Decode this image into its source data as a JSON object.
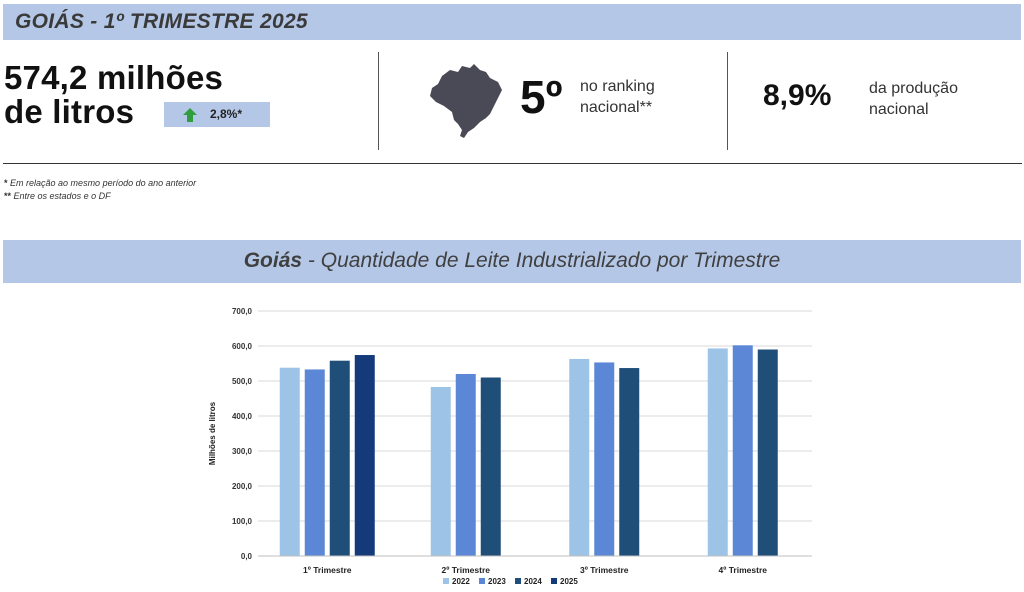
{
  "header": {
    "title": "GOIÁS - 1º TRIMESTRE 2025"
  },
  "kpis": {
    "volume_line1": "574,2 milhões",
    "volume_line2": "de litros",
    "growth_label": "2,8%*",
    "growth_direction_icon": "up-arrow-icon",
    "map_icon": "brazil-map-icon",
    "rank_value": "5º",
    "rank_text": "no ranking nacional**",
    "share_value": "8,9%",
    "share_text": "da produção nacional"
  },
  "notes": [
    {
      "marker": "*",
      "text": "Em relação ao mesmo período do ano anterior"
    },
    {
      "marker": "**",
      "text": "Entre os estados e o DF"
    }
  ],
  "chart_header": {
    "title_bold": "Goiás",
    "title_rest": "- Quantidade de Leite Industrializado por Trimestre"
  },
  "colors": {
    "band": "#b4c7e7",
    "accent_green": "#2e9e3e",
    "map": "#4a4a56"
  },
  "chart_data": {
    "type": "bar",
    "ylabel": "Milhões de litros",
    "xlabel": "",
    "ylim": [
      0,
      700
    ],
    "ytick_step": 100,
    "ytick_labels": [
      "0,0",
      "100,0",
      "200,0",
      "300,0",
      "400,0",
      "500,0",
      "600,0",
      "700,0"
    ],
    "grid": true,
    "legend_position": "bottom",
    "categories": [
      "1º Trimestre",
      "2º Trimestre",
      "3º Trimestre",
      "4º Trimestre"
    ],
    "series": [
      {
        "name": "2022",
        "color": "#9dc3e6",
        "values": [
          538,
          483,
          563,
          593
        ]
      },
      {
        "name": "2023",
        "color": "#5b87d6",
        "values": [
          533,
          520,
          553,
          602
        ]
      },
      {
        "name": "2024",
        "color": "#1f4e79",
        "values": [
          558,
          510,
          537,
          590
        ]
      },
      {
        "name": "2025",
        "color": "#143a7a",
        "values": [
          574.2,
          null,
          null,
          null
        ]
      }
    ]
  }
}
